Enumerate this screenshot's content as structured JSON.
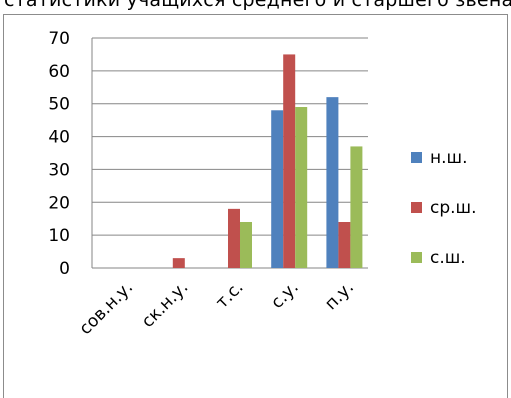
{
  "header_text": "статистики учащихся среднего и старшего звена",
  "colors": {
    "n_sh": "#4f81bd",
    "sr_sh": "#c0504d",
    "s_sh": "#9bbb59",
    "grid": "#868686"
  },
  "chart_data": {
    "type": "bar",
    "title": "",
    "xlabel": "",
    "ylabel": "",
    "categories": [
      "сов.н.у.",
      "ск.н.у.",
      "т.с.",
      "с.у.",
      "п.у."
    ],
    "series": [
      {
        "name": "н.ш.",
        "values": [
          0,
          0,
          0,
          48,
          52
        ]
      },
      {
        "name": "ср.ш.",
        "values": [
          0,
          3,
          18,
          65,
          14
        ]
      },
      {
        "name": "с.ш.",
        "values": [
          0,
          0,
          14,
          49,
          37
        ]
      }
    ],
    "ylim": [
      0,
      70
    ],
    "yticks": [
      "0",
      "10",
      "20",
      "30",
      "40",
      "50",
      "60",
      "70"
    ],
    "grid": true,
    "legend": "right"
  }
}
